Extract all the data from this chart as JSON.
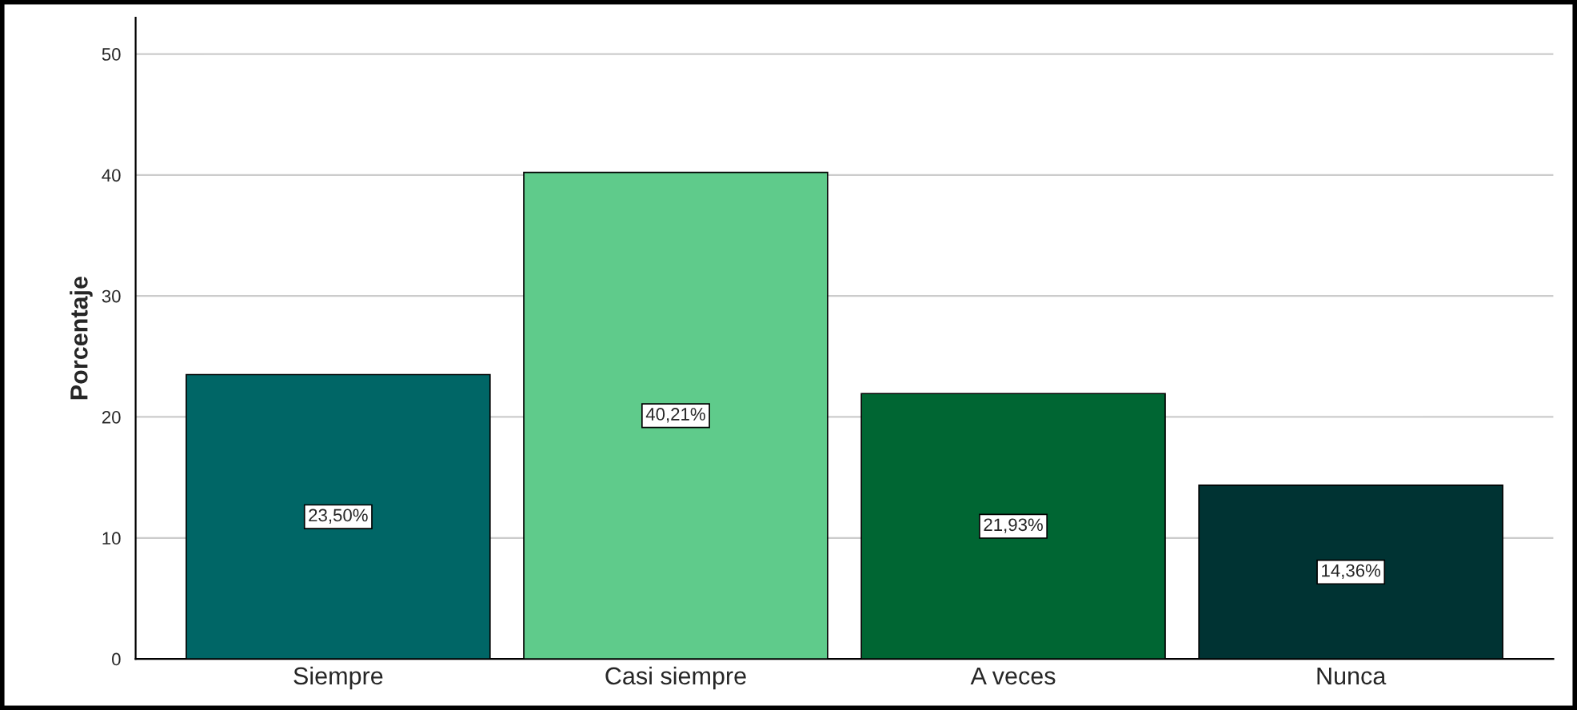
{
  "chart_data": {
    "type": "bar",
    "ylabel": "Porcentaje",
    "categories": [
      "Siempre",
      "Casi siempre",
      "A veces",
      "Nunca"
    ],
    "values": [
      23.5,
      40.21,
      21.93,
      14.36
    ],
    "value_labels": [
      "23,50%",
      "40,21%",
      "21,93%",
      "14,36%"
    ],
    "colors": [
      "#006666",
      "#5fcb8b",
      "#006633",
      "#003333"
    ],
    "ylim": [
      0,
      53
    ],
    "yticks": [
      0,
      10,
      20,
      30,
      40,
      50
    ],
    "grid": "y"
  }
}
